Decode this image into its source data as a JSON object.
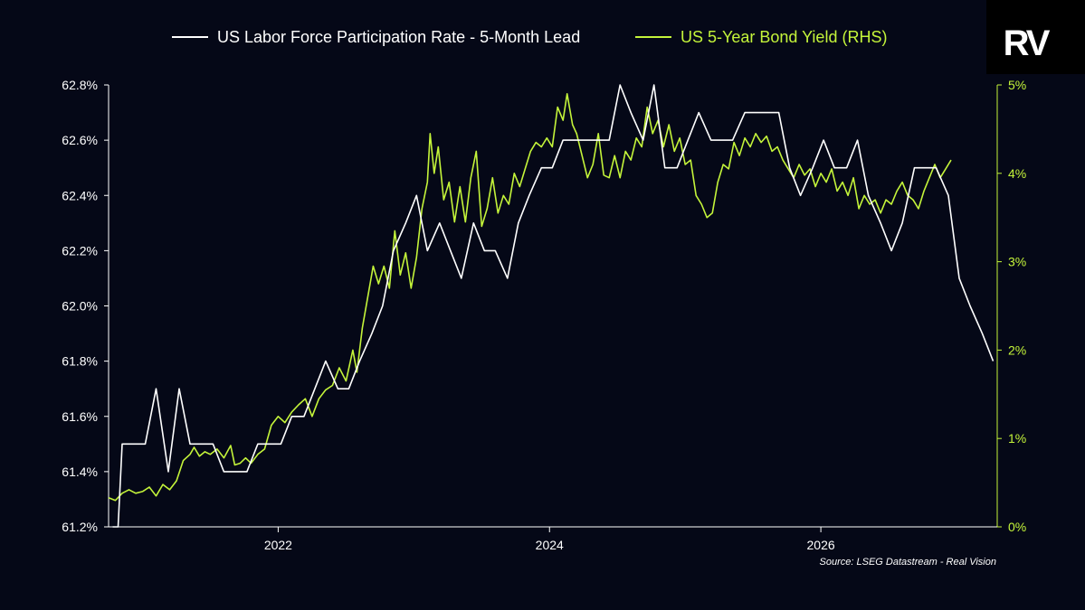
{
  "legend": {
    "series1": "US Labor Force Participation Rate - 5-Month Lead",
    "series2": "US 5-Year Bond Yield (RHS)"
  },
  "source": "Source: LSEG Datastream - Real Vision",
  "logo": "RV",
  "colors": {
    "background": "#050817",
    "series1": "#ffffff",
    "series2": "#c4f43a",
    "axis_left": "#ffffff",
    "axis_right": "#c4f43a"
  },
  "chart_data": {
    "type": "line",
    "x_axis": {
      "range": [
        2020.75,
        2027.3
      ],
      "ticks": [
        2022,
        2024,
        2026
      ],
      "tick_labels": [
        "2022",
        "2024",
        "2026"
      ]
    },
    "y_left": {
      "range": [
        61.2,
        62.8
      ],
      "ticks": [
        61.2,
        61.4,
        61.6,
        61.8,
        62.0,
        62.2,
        62.4,
        62.6,
        62.8
      ],
      "tick_labels": [
        "61.2%",
        "61.4%",
        "61.6%",
        "61.8%",
        "62.0%",
        "62.2%",
        "62.4%",
        "62.6%",
        "62.8%"
      ]
    },
    "y_right": {
      "range": [
        0,
        5
      ],
      "ticks": [
        0,
        1,
        2,
        3,
        4,
        5
      ],
      "tick_labels": [
        "0%",
        "1%",
        "2%",
        "3%",
        "4%",
        "5%"
      ]
    },
    "grid": false,
    "legend_position": "top",
    "series": [
      {
        "name": "US Labor Force Participation Rate - 5-Month Lead",
        "axis": "left",
        "color": "#ffffff",
        "points": [
          [
            2020.78,
            61.2
          ],
          [
            2020.82,
            61.2
          ],
          [
            2020.85,
            61.5
          ],
          [
            2020.94,
            61.5
          ],
          [
            2021.02,
            61.5
          ],
          [
            2021.1,
            61.7
          ],
          [
            2021.19,
            61.4
          ],
          [
            2021.27,
            61.7
          ],
          [
            2021.35,
            61.5
          ],
          [
            2021.44,
            61.5
          ],
          [
            2021.52,
            61.5
          ],
          [
            2021.6,
            61.4
          ],
          [
            2021.69,
            61.4
          ],
          [
            2021.77,
            61.4
          ],
          [
            2021.85,
            61.5
          ],
          [
            2021.94,
            61.5
          ],
          [
            2022.02,
            61.5
          ],
          [
            2022.1,
            61.6
          ],
          [
            2022.19,
            61.6
          ],
          [
            2022.27,
            61.7
          ],
          [
            2022.35,
            61.8
          ],
          [
            2022.44,
            61.7
          ],
          [
            2022.52,
            61.7
          ],
          [
            2022.6,
            61.8
          ],
          [
            2022.69,
            61.9
          ],
          [
            2022.77,
            62.0
          ],
          [
            2022.85,
            62.2
          ],
          [
            2022.94,
            62.3
          ],
          [
            2023.02,
            62.4
          ],
          [
            2023.1,
            62.2
          ],
          [
            2023.19,
            62.3
          ],
          [
            2023.27,
            62.2
          ],
          [
            2023.35,
            62.1
          ],
          [
            2023.44,
            62.3
          ],
          [
            2023.52,
            62.2
          ],
          [
            2023.6,
            62.2
          ],
          [
            2023.69,
            62.1
          ],
          [
            2023.77,
            62.3
          ],
          [
            2023.85,
            62.4
          ],
          [
            2023.94,
            62.5
          ],
          [
            2024.02,
            62.5
          ],
          [
            2024.1,
            62.6
          ],
          [
            2024.19,
            62.6
          ],
          [
            2024.27,
            62.6
          ],
          [
            2024.35,
            62.6
          ],
          [
            2024.44,
            62.6
          ],
          [
            2024.52,
            62.8
          ],
          [
            2024.6,
            62.7
          ],
          [
            2024.69,
            62.6
          ],
          [
            2024.77,
            62.8
          ],
          [
            2024.85,
            62.5
          ],
          [
            2024.94,
            62.5
          ],
          [
            2025.02,
            62.6
          ],
          [
            2025.1,
            62.7
          ],
          [
            2025.19,
            62.6
          ],
          [
            2025.27,
            62.6
          ],
          [
            2025.35,
            62.6
          ],
          [
            2025.44,
            62.7
          ],
          [
            2025.52,
            62.7
          ],
          [
            2025.6,
            62.7
          ],
          [
            2025.69,
            62.7
          ],
          [
            2025.77,
            62.5
          ],
          [
            2025.85,
            62.4
          ],
          [
            2025.94,
            62.5
          ],
          [
            2026.02,
            62.6
          ],
          [
            2026.1,
            62.5
          ],
          [
            2026.19,
            62.5
          ],
          [
            2026.27,
            62.6
          ],
          [
            2026.35,
            62.4
          ],
          [
            2026.44,
            62.3
          ],
          [
            2026.52,
            62.2
          ],
          [
            2026.6,
            62.3
          ],
          [
            2026.69,
            62.5
          ],
          [
            2026.77,
            62.5
          ],
          [
            2026.85,
            62.5
          ],
          [
            2026.94,
            62.4
          ],
          [
            2027.02,
            62.1
          ],
          [
            2027.1,
            62.0
          ],
          [
            2027.19,
            61.9
          ],
          [
            2027.27,
            61.8
          ]
        ]
      },
      {
        "name": "US 5-Year Bond Yield (RHS)",
        "axis": "right",
        "color": "#c4f43a",
        "points": [
          [
            2020.75,
            0.33
          ],
          [
            2020.8,
            0.3
          ],
          [
            2020.85,
            0.38
          ],
          [
            2020.9,
            0.42
          ],
          [
            2020.95,
            0.38
          ],
          [
            2021.0,
            0.4
          ],
          [
            2021.05,
            0.45
          ],
          [
            2021.1,
            0.35
          ],
          [
            2021.15,
            0.48
          ],
          [
            2021.2,
            0.42
          ],
          [
            2021.25,
            0.52
          ],
          [
            2021.3,
            0.75
          ],
          [
            2021.35,
            0.82
          ],
          [
            2021.38,
            0.9
          ],
          [
            2021.42,
            0.8
          ],
          [
            2021.46,
            0.85
          ],
          [
            2021.5,
            0.82
          ],
          [
            2021.55,
            0.88
          ],
          [
            2021.6,
            0.78
          ],
          [
            2021.65,
            0.92
          ],
          [
            2021.68,
            0.7
          ],
          [
            2021.72,
            0.72
          ],
          [
            2021.76,
            0.78
          ],
          [
            2021.8,
            0.72
          ],
          [
            2021.85,
            0.82
          ],
          [
            2021.9,
            0.88
          ],
          [
            2021.95,
            1.15
          ],
          [
            2022.0,
            1.25
          ],
          [
            2022.05,
            1.18
          ],
          [
            2022.1,
            1.3
          ],
          [
            2022.15,
            1.38
          ],
          [
            2022.2,
            1.45
          ],
          [
            2022.25,
            1.25
          ],
          [
            2022.3,
            1.45
          ],
          [
            2022.35,
            1.55
          ],
          [
            2022.4,
            1.6
          ],
          [
            2022.45,
            1.8
          ],
          [
            2022.5,
            1.65
          ],
          [
            2022.55,
            2.0
          ],
          [
            2022.58,
            1.75
          ],
          [
            2022.62,
            2.25
          ],
          [
            2022.66,
            2.6
          ],
          [
            2022.7,
            2.95
          ],
          [
            2022.74,
            2.75
          ],
          [
            2022.78,
            2.95
          ],
          [
            2022.82,
            2.7
          ],
          [
            2022.86,
            3.35
          ],
          [
            2022.9,
            2.85
          ],
          [
            2022.94,
            3.1
          ],
          [
            2022.98,
            2.7
          ],
          [
            2023.02,
            3.05
          ],
          [
            2023.06,
            3.6
          ],
          [
            2023.1,
            3.9
          ],
          [
            2023.12,
            4.45
          ],
          [
            2023.15,
            4.0
          ],
          [
            2023.18,
            4.3
          ],
          [
            2023.22,
            3.7
          ],
          [
            2023.26,
            3.9
          ],
          [
            2023.3,
            3.45
          ],
          [
            2023.34,
            3.85
          ],
          [
            2023.38,
            3.45
          ],
          [
            2023.42,
            3.95
          ],
          [
            2023.46,
            4.25
          ],
          [
            2023.5,
            3.4
          ],
          [
            2023.54,
            3.6
          ],
          [
            2023.58,
            3.95
          ],
          [
            2023.62,
            3.55
          ],
          [
            2023.66,
            3.75
          ],
          [
            2023.7,
            3.65
          ],
          [
            2023.74,
            4.0
          ],
          [
            2023.78,
            3.85
          ],
          [
            2023.82,
            4.05
          ],
          [
            2023.86,
            4.25
          ],
          [
            2023.9,
            4.35
          ],
          [
            2023.94,
            4.3
          ],
          [
            2023.98,
            4.4
          ],
          [
            2024.02,
            4.3
          ],
          [
            2024.06,
            4.75
          ],
          [
            2024.1,
            4.6
          ],
          [
            2024.13,
            4.9
          ],
          [
            2024.17,
            4.55
          ],
          [
            2024.2,
            4.45
          ],
          [
            2024.24,
            4.2
          ],
          [
            2024.28,
            3.95
          ],
          [
            2024.32,
            4.1
          ],
          [
            2024.36,
            4.45
          ],
          [
            2024.4,
            3.98
          ],
          [
            2024.44,
            3.95
          ],
          [
            2024.48,
            4.2
          ],
          [
            2024.52,
            3.95
          ],
          [
            2024.56,
            4.25
          ],
          [
            2024.6,
            4.15
          ],
          [
            2024.64,
            4.4
          ],
          [
            2024.68,
            4.3
          ],
          [
            2024.72,
            4.75
          ],
          [
            2024.76,
            4.45
          ],
          [
            2024.8,
            4.6
          ],
          [
            2024.84,
            4.3
          ],
          [
            2024.88,
            4.55
          ],
          [
            2024.92,
            4.25
          ],
          [
            2024.96,
            4.4
          ],
          [
            2025.0,
            4.1
          ],
          [
            2025.04,
            4.15
          ],
          [
            2025.08,
            3.75
          ],
          [
            2025.12,
            3.65
          ],
          [
            2025.16,
            3.5
          ],
          [
            2025.2,
            3.55
          ],
          [
            2025.24,
            3.9
          ],
          [
            2025.28,
            4.1
          ],
          [
            2025.32,
            4.05
          ],
          [
            2025.36,
            4.35
          ],
          [
            2025.4,
            4.2
          ],
          [
            2025.44,
            4.4
          ],
          [
            2025.48,
            4.3
          ],
          [
            2025.52,
            4.45
          ],
          [
            2025.56,
            4.35
          ],
          [
            2025.6,
            4.42
          ],
          [
            2025.64,
            4.25
          ],
          [
            2025.68,
            4.3
          ],
          [
            2025.72,
            4.15
          ],
          [
            2025.76,
            4.05
          ],
          [
            2025.8,
            3.95
          ],
          [
            2025.84,
            4.1
          ],
          [
            2025.88,
            3.98
          ],
          [
            2025.92,
            4.05
          ],
          [
            2025.96,
            3.85
          ],
          [
            2026.0,
            4.0
          ],
          [
            2026.04,
            3.9
          ],
          [
            2026.08,
            4.05
          ],
          [
            2026.12,
            3.8
          ],
          [
            2026.16,
            3.9
          ],
          [
            2026.2,
            3.75
          ],
          [
            2026.24,
            3.95
          ],
          [
            2026.28,
            3.6
          ],
          [
            2026.32,
            3.75
          ],
          [
            2026.36,
            3.65
          ],
          [
            2026.4,
            3.7
          ],
          [
            2026.44,
            3.55
          ],
          [
            2026.48,
            3.7
          ],
          [
            2026.52,
            3.65
          ],
          [
            2026.56,
            3.8
          ],
          [
            2026.6,
            3.9
          ],
          [
            2026.64,
            3.75
          ],
          [
            2026.68,
            3.7
          ],
          [
            2026.72,
            3.6
          ],
          [
            2026.76,
            3.8
          ],
          [
            2026.8,
            3.95
          ],
          [
            2026.84,
            4.1
          ],
          [
            2026.88,
            3.95
          ],
          [
            2026.92,
            4.05
          ],
          [
            2026.96,
            4.15
          ]
        ]
      }
    ]
  }
}
